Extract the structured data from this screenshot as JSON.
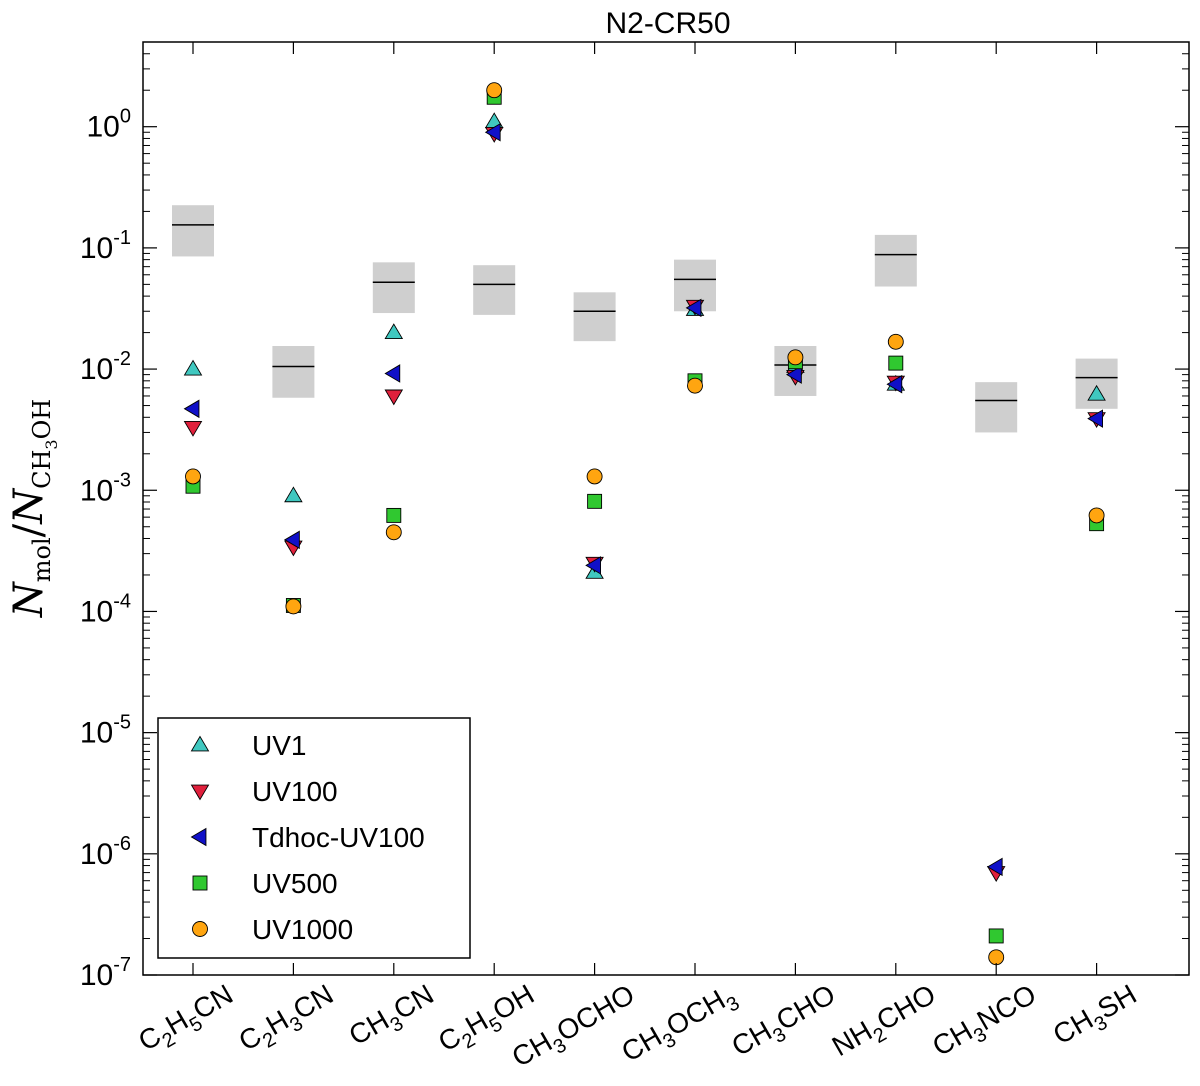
{
  "chart_data": {
    "type": "scatter",
    "title": "N2-CR50",
    "ylabel": "N_mol / N_CH3OH",
    "ylabel_main": "N",
    "ylabel_sub1": "mol",
    "ylabel_sub2": "CH",
    "ylabel_sub3": "3",
    "ylabel_sub4": "OH",
    "yscale": "log",
    "ylim": [
      1e-07,
      5
    ],
    "yticks": [
      {
        "base": "10",
        "exp": "-7",
        "value": 1e-07
      },
      {
        "base": "10",
        "exp": "-6",
        "value": 1e-06
      },
      {
        "base": "10",
        "exp": "-5",
        "value": 1e-05
      },
      {
        "base": "10",
        "exp": "-4",
        "value": 0.0001
      },
      {
        "base": "10",
        "exp": "-3",
        "value": 0.001
      },
      {
        "base": "10",
        "exp": "-2",
        "value": 0.01
      },
      {
        "base": "10",
        "exp": "-1",
        "value": 0.1
      },
      {
        "base": "10",
        "exp": "0",
        "value": 1
      }
    ],
    "categories": [
      {
        "parts": [
          [
            "C",
            ""
          ],
          [
            "2",
            "sub"
          ],
          [
            "H",
            ""
          ],
          [
            "5",
            "sub"
          ],
          [
            "CN",
            ""
          ]
        ]
      },
      {
        "parts": [
          [
            "C",
            ""
          ],
          [
            "2",
            "sub"
          ],
          [
            "H",
            ""
          ],
          [
            "3",
            "sub"
          ],
          [
            "CN",
            ""
          ]
        ]
      },
      {
        "parts": [
          [
            "CH",
            ""
          ],
          [
            "3",
            "sub"
          ],
          [
            "CN",
            ""
          ]
        ]
      },
      {
        "parts": [
          [
            "C",
            ""
          ],
          [
            "2",
            "sub"
          ],
          [
            "H",
            ""
          ],
          [
            "5",
            "sub"
          ],
          [
            "OH",
            ""
          ]
        ]
      },
      {
        "parts": [
          [
            "CH",
            ""
          ],
          [
            "3",
            "sub"
          ],
          [
            "OCHO",
            ""
          ]
        ]
      },
      {
        "parts": [
          [
            "CH",
            ""
          ],
          [
            "3",
            "sub"
          ],
          [
            "OCH",
            ""
          ],
          [
            "3",
            "sub"
          ]
        ]
      },
      {
        "parts": [
          [
            "CH",
            ""
          ],
          [
            "3",
            "sub"
          ],
          [
            "CHO",
            ""
          ]
        ]
      },
      {
        "parts": [
          [
            "NH",
            ""
          ],
          [
            "2",
            "sub"
          ],
          [
            "CHO",
            ""
          ]
        ]
      },
      {
        "parts": [
          [
            "CH",
            ""
          ],
          [
            "3",
            "sub"
          ],
          [
            "NCO",
            ""
          ]
        ]
      },
      {
        "parts": [
          [
            "CH",
            ""
          ],
          [
            "3",
            "sub"
          ],
          [
            "SH",
            ""
          ]
        ]
      }
    ],
    "observed": [
      {
        "value": 0.155,
        "low": 0.085,
        "high": 0.225
      },
      {
        "value": 0.0105,
        "low": 0.0058,
        "high": 0.0155
      },
      {
        "value": 0.052,
        "low": 0.029,
        "high": 0.076
      },
      {
        "value": 0.05,
        "low": 0.028,
        "high": 0.072
      },
      {
        "value": 0.03,
        "low": 0.017,
        "high": 0.043
      },
      {
        "value": 0.055,
        "low": 0.03,
        "high": 0.08
      },
      {
        "value": 0.0108,
        "low": 0.006,
        "high": 0.0155
      },
      {
        "value": 0.088,
        "low": 0.048,
        "high": 0.128
      },
      {
        "value": 0.0055,
        "low": 0.003,
        "high": 0.0078
      },
      {
        "value": 0.0085,
        "low": 0.0047,
        "high": 0.0122
      }
    ],
    "series": [
      {
        "name": "UV1",
        "marker": "triangle-up",
        "color": "#40c8c0",
        "values": [
          0.01,
          0.0009,
          0.02,
          1.1,
          0.00021,
          0.031,
          0.0105,
          0.0075,
          null,
          0.0062
        ]
      },
      {
        "name": "UV100",
        "marker": "triangle-down",
        "color": "#e0203c",
        "values": [
          0.0033,
          0.00034,
          0.006,
          0.88,
          0.00025,
          0.033,
          0.0087,
          0.0078,
          7e-07,
          0.0039
        ]
      },
      {
        "name": "Tdhoc-UV100",
        "marker": "triangle-left",
        "color": "#1010c8",
        "values": [
          0.0047,
          0.00039,
          0.0092,
          0.9,
          0.00024,
          0.032,
          0.009,
          0.0075,
          7.8e-07,
          0.0039
        ]
      },
      {
        "name": "UV500",
        "marker": "square",
        "color": "#30c830",
        "values": [
          0.00108,
          0.000112,
          0.00062,
          1.75,
          0.00081,
          0.008,
          0.0115,
          0.0112,
          2.1e-07,
          0.00053
        ]
      },
      {
        "name": "UV1000",
        "marker": "circle",
        "color": "#ffa510",
        "values": [
          0.0013,
          0.00011,
          0.00045,
          2.0,
          0.0013,
          0.0073,
          0.0125,
          0.0168,
          1.4e-07,
          0.00062
        ]
      }
    ],
    "legend_position": "lower-left"
  }
}
